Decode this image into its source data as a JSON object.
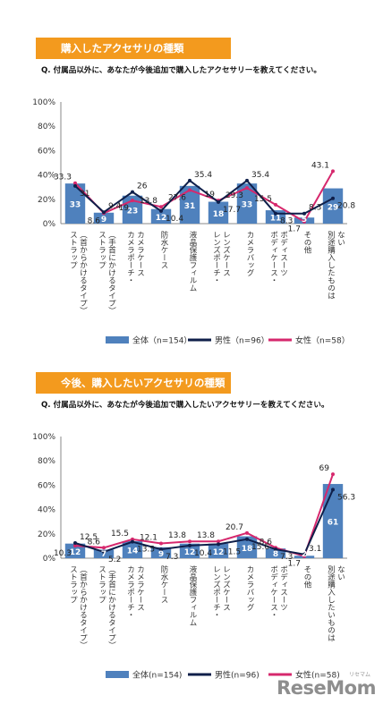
{
  "charts": [
    {
      "banner": "購入したアクセサリの種類",
      "question": "Q. 付属品以外に、あなたが今後追加で購入したアクセサリーを教えてください。"
    },
    {
      "banner": "今後、購入したいアクセサリの種類",
      "question": "Q. 付属品以外に、あなたが今後追加で購入したいアクセサリーを教えてください。"
    }
  ],
  "logo": {
    "text": "ReseMom",
    "sub": "リセマム"
  },
  "chart_data": [
    {
      "type": "bar",
      "categories": [
        [
          "ストラップ",
          "（首からかけるタイプ）"
        ],
        [
          "ストラップ",
          "（手首にかけるタイプ）"
        ],
        [
          "カメラポーチ・",
          "カメラケース"
        ],
        [
          "防水ケース"
        ],
        [
          "液晶保護フィルム"
        ],
        [
          "レンズポーチ・",
          "レンズケース"
        ],
        [
          "カメラバッグ"
        ],
        [
          "ボディケース・",
          "ボディスーツ"
        ],
        [
          "その他"
        ],
        [
          "別途購入したものは",
          "ない"
        ]
      ],
      "ylim": [
        0,
        100
      ],
      "yticks": [
        "0%",
        "20%",
        "40%",
        "60%",
        "80%",
        "100%"
      ],
      "grid": false,
      "legend": "bottom",
      "series": [
        {
          "name": "全体（n=154）",
          "kind": "bar",
          "color": "#4f81bd",
          "values": [
            33,
            9,
            23,
            12,
            31,
            18,
            33,
            11,
            5,
            29
          ]
        },
        {
          "name": "男性（n=96）",
          "kind": "line",
          "color": "#0f1f4a",
          "values": [
            31,
            9.4,
            26,
            10.4,
            35.4,
            17.7,
            35.4,
            8.3,
            8.3,
            20.8
          ]
        },
        {
          "name": "女性（n=58）",
          "kind": "line",
          "color": "#d6286d",
          "values": [
            33.3,
            8.6,
            19,
            13.8,
            27.6,
            19,
            29.3,
            15.5,
            1.7,
            43.1
          ]
        }
      ],
      "data_labels": {
        "bar": [
          "33",
          "9",
          "23",
          "12",
          "31",
          "18",
          "33",
          "11",
          "5",
          "29"
        ],
        "male": [
          "31",
          "9.4",
          "26",
          "10.4",
          "35.4",
          "17.7",
          "35.4",
          "8.3",
          "8.3",
          "20.8"
        ],
        "female": [
          "33.3",
          "8.6",
          "19",
          "13.8",
          "27.6",
          "19",
          "29.3",
          "15.5",
          "1.7",
          "43.1"
        ]
      }
    },
    {
      "type": "bar",
      "categories": [
        [
          "ストラップ",
          "（首からかけるタイプ）"
        ],
        [
          "ストラップ",
          "（手首にかけるタイプ）"
        ],
        [
          "カメラポーチ・",
          "カメラケース"
        ],
        [
          "防水ケース"
        ],
        [
          "液晶保護フィルム"
        ],
        [
          "レンズポーチ・",
          "レンズケース"
        ],
        [
          "カメラバッグ"
        ],
        [
          "ボディケース・",
          "ボディスーツ"
        ],
        [
          "その他"
        ],
        [
          "別途購入したいものは",
          "ない"
        ]
      ],
      "ylim": [
        0,
        100
      ],
      "yticks": [
        "0%",
        "20%",
        "40%",
        "60%",
        "80%",
        "100%"
      ],
      "grid": false,
      "legend": "bottom",
      "series": [
        {
          "name": "全体(n=154)",
          "kind": "bar",
          "color": "#4f81bd",
          "values": [
            12,
            7,
            14,
            9,
            12,
            12,
            18,
            8,
            2,
            61
          ]
        },
        {
          "name": "男性(n=96)",
          "kind": "line",
          "color": "#0f1f4a",
          "values": [
            12.5,
            5.2,
            13.5,
            7.3,
            10.4,
            11.5,
            15.6,
            7.3,
            3.1,
            56.3
          ]
        },
        {
          "name": "女性(n=58)",
          "kind": "line",
          "color": "#d6286d",
          "values": [
            10.3,
            8.6,
            15.5,
            12.1,
            13.8,
            13.8,
            20.7,
            8.6,
            1.7,
            69
          ]
        }
      ],
      "data_labels": {
        "bar": [
          "12",
          "7",
          "14",
          "9",
          "12",
          "12",
          "18",
          "8",
          "2",
          "61"
        ],
        "male": [
          "12.5",
          "5.2",
          "13.5",
          "7.3",
          "10.4",
          "11.5",
          "15.6",
          "7.3",
          "3.1",
          "56.3"
        ],
        "female": [
          "10.3",
          "8.6",
          "15.5",
          "12.1",
          "13.8",
          "13.8",
          "20.7",
          "8.6",
          "1.7",
          "69"
        ]
      }
    }
  ]
}
